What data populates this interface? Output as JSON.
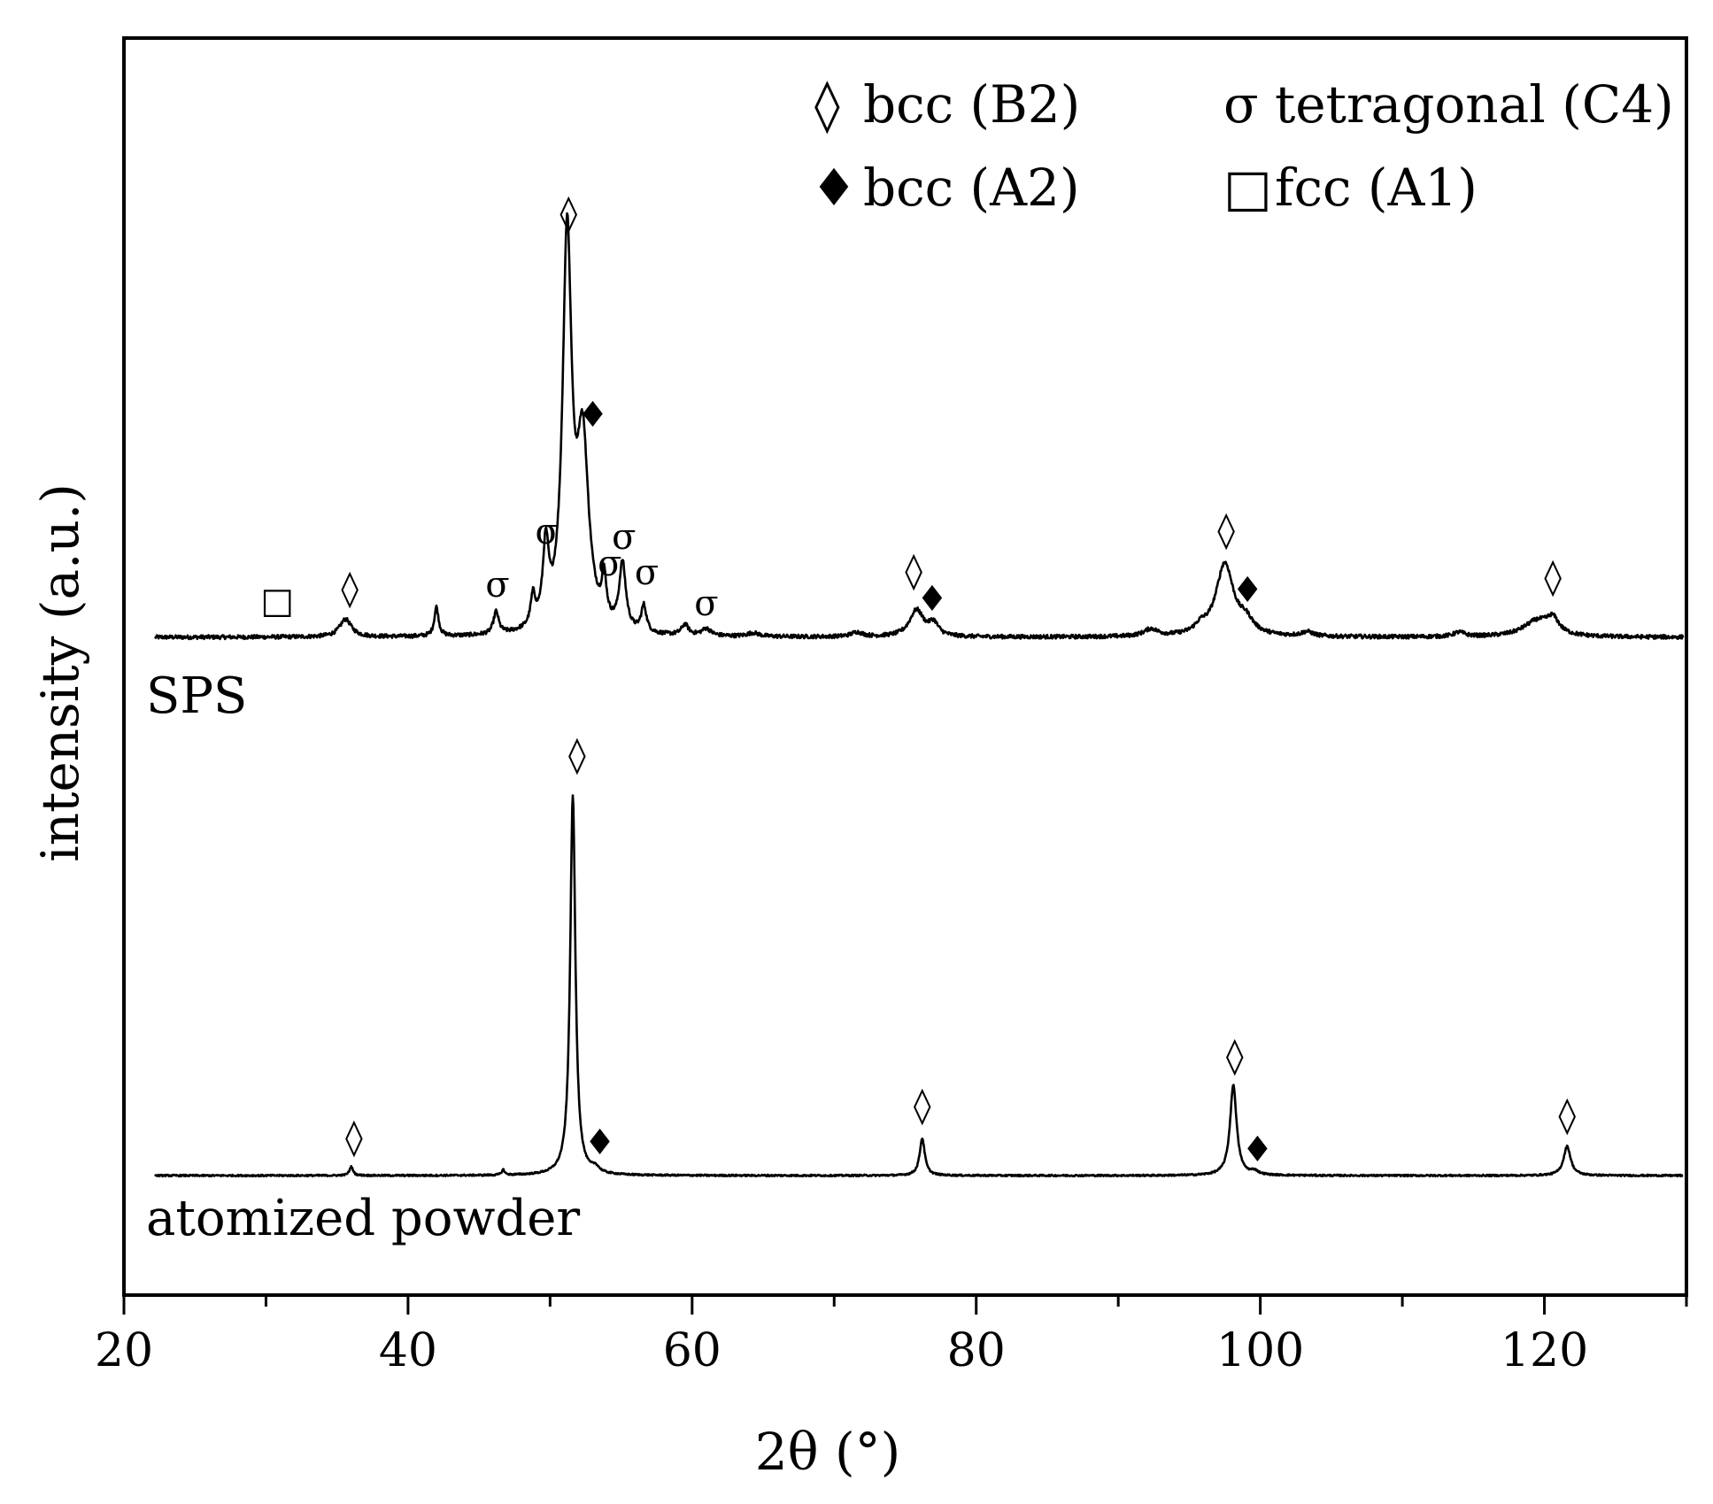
{
  "chart_data": {
    "type": "line",
    "title": "",
    "xlabel": "2θ (°)",
    "ylabel": "intensity (a.u.)",
    "xlim": [
      20,
      130
    ],
    "xticks": [
      20,
      40,
      60,
      80,
      100,
      120
    ],
    "yticks_shown": false,
    "grid": false,
    "legend": {
      "placement": "top-right",
      "entries": [
        {
          "symbol": "◊",
          "text": "bcc (B2)"
        },
        {
          "symbol": "σ",
          "text": "tetragonal (C4)"
        },
        {
          "symbol": "♦",
          "text": "bcc (A2)"
        },
        {
          "symbol": "□",
          "text": "fcc (A1)"
        }
      ]
    },
    "series": [
      {
        "name": "SPS",
        "label": "SPS",
        "baseline": 0,
        "peaks": [
          {
            "x": 35.6,
            "h": 20,
            "w": 0.5
          },
          {
            "x": 42.0,
            "h": 33,
            "w": 0.18
          },
          {
            "x": 46.2,
            "h": 25,
            "w": 0.22
          },
          {
            "x": 48.8,
            "h": 33,
            "w": 0.2
          },
          {
            "x": 49.7,
            "h": 87,
            "w": 0.25
          },
          {
            "x": 51.2,
            "h": 440,
            "w": 0.38
          },
          {
            "x": 52.3,
            "h": 205,
            "w": 0.5
          },
          {
            "x": 53.8,
            "h": 48,
            "w": 0.2
          },
          {
            "x": 55.1,
            "h": 75,
            "w": 0.28
          },
          {
            "x": 56.6,
            "h": 30,
            "w": 0.22
          },
          {
            "x": 59.5,
            "h": 12,
            "w": 0.3
          },
          {
            "x": 61.0,
            "h": 8,
            "w": 0.4
          },
          {
            "x": 64.3,
            "h": 4,
            "w": 0.5
          },
          {
            "x": 71.6,
            "h": 5,
            "w": 0.5
          },
          {
            "x": 75.8,
            "h": 30,
            "w": 0.6
          },
          {
            "x": 77.0,
            "h": 14,
            "w": 0.4
          },
          {
            "x": 92.3,
            "h": 8,
            "w": 0.6
          },
          {
            "x": 95.8,
            "h": 8,
            "w": 0.5
          },
          {
            "x": 97.5,
            "h": 82,
            "w": 0.75
          },
          {
            "x": 99.0,
            "h": 14,
            "w": 0.6
          },
          {
            "x": 103.3,
            "h": 5,
            "w": 0.5
          },
          {
            "x": 114.0,
            "h": 5,
            "w": 0.5
          },
          {
            "x": 119.5,
            "h": 18,
            "w": 1.2
          },
          {
            "x": 120.6,
            "h": 16,
            "w": 0.5
          }
        ],
        "annotations": [
          {
            "symbol": "□",
            "x": 30.8,
            "y": 28
          },
          {
            "symbol": "◊",
            "x": 35.9,
            "y": 42
          },
          {
            "symbol": "σ",
            "x": 46.3,
            "y": 46
          },
          {
            "symbol": "σ",
            "x": 49.8,
            "y": 106
          },
          {
            "symbol": "◊",
            "x": 51.3,
            "y": 466
          },
          {
            "symbol": "♦",
            "x": 53.0,
            "y": 238
          },
          {
            "symbol": "σ",
            "x": 54.2,
            "y": 70
          },
          {
            "symbol": "σ",
            "x": 55.2,
            "y": 100
          },
          {
            "symbol": "σ",
            "x": 56.8,
            "y": 60
          },
          {
            "symbol": "σ",
            "x": 61.0,
            "y": 25
          },
          {
            "symbol": "◊",
            "x": 75.6,
            "y": 62
          },
          {
            "symbol": "♦",
            "x": 76.9,
            "y": 30
          },
          {
            "symbol": "◊",
            "x": 97.6,
            "y": 108
          },
          {
            "symbol": "♦",
            "x": 99.1,
            "y": 40
          },
          {
            "symbol": "◊",
            "x": 120.6,
            "y": 55
          }
        ]
      },
      {
        "name": "atomized powder",
        "label": "atomized powder",
        "baseline": 0,
        "peaks": [
          {
            "x": 36.0,
            "h": 10,
            "w": 0.15
          },
          {
            "x": 46.7,
            "h": 6,
            "w": 0.12
          },
          {
            "x": 51.6,
            "h": 430,
            "w": 0.22
          },
          {
            "x": 53.2,
            "h": 6,
            "w": 0.3
          },
          {
            "x": 76.2,
            "h": 42,
            "w": 0.22
          },
          {
            "x": 98.1,
            "h": 102,
            "w": 0.28
          },
          {
            "x": 99.6,
            "h": 4,
            "w": 0.3
          },
          {
            "x": 121.6,
            "h": 33,
            "w": 0.3
          }
        ],
        "annotations": [
          {
            "symbol": "◊",
            "x": 36.2,
            "y": 30
          },
          {
            "symbol": "◊",
            "x": 51.9,
            "y": 462
          },
          {
            "symbol": "♦",
            "x": 53.5,
            "y": 24
          },
          {
            "symbol": "◊",
            "x": 76.2,
            "y": 66
          },
          {
            "symbol": "◊",
            "x": 98.2,
            "y": 122
          },
          {
            "symbol": "♦",
            "x": 99.8,
            "y": 16
          },
          {
            "symbol": "◊",
            "x": 121.6,
            "y": 55
          }
        ]
      }
    ]
  }
}
